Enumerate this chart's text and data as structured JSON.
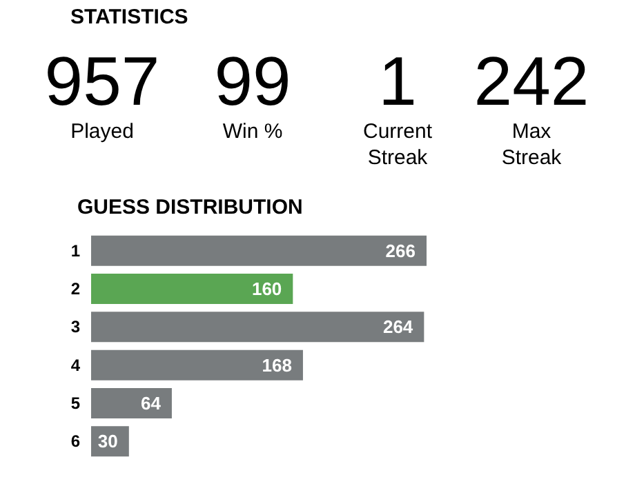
{
  "chart_data": [
    {
      "type": "other",
      "title": "STATISTICS",
      "categories": [
        "Played",
        "Win %",
        "Current Streak",
        "Max Streak"
      ],
      "values": [
        957,
        99,
        1,
        242
      ],
      "data_labels": true
    },
    {
      "type": "bar",
      "orientation": "horizontal",
      "title": "GUESS DISTRIBUTION",
      "categories": [
        "1",
        "2",
        "3",
        "4",
        "5",
        "6"
      ],
      "values": [
        266,
        160,
        264,
        168,
        64,
        30
      ],
      "colors": [
        "#787c7e",
        "#5aa653",
        "#787c7e",
        "#787c7e",
        "#787c7e",
        "#787c7e"
      ],
      "data_labels": true
    }
  ]
}
